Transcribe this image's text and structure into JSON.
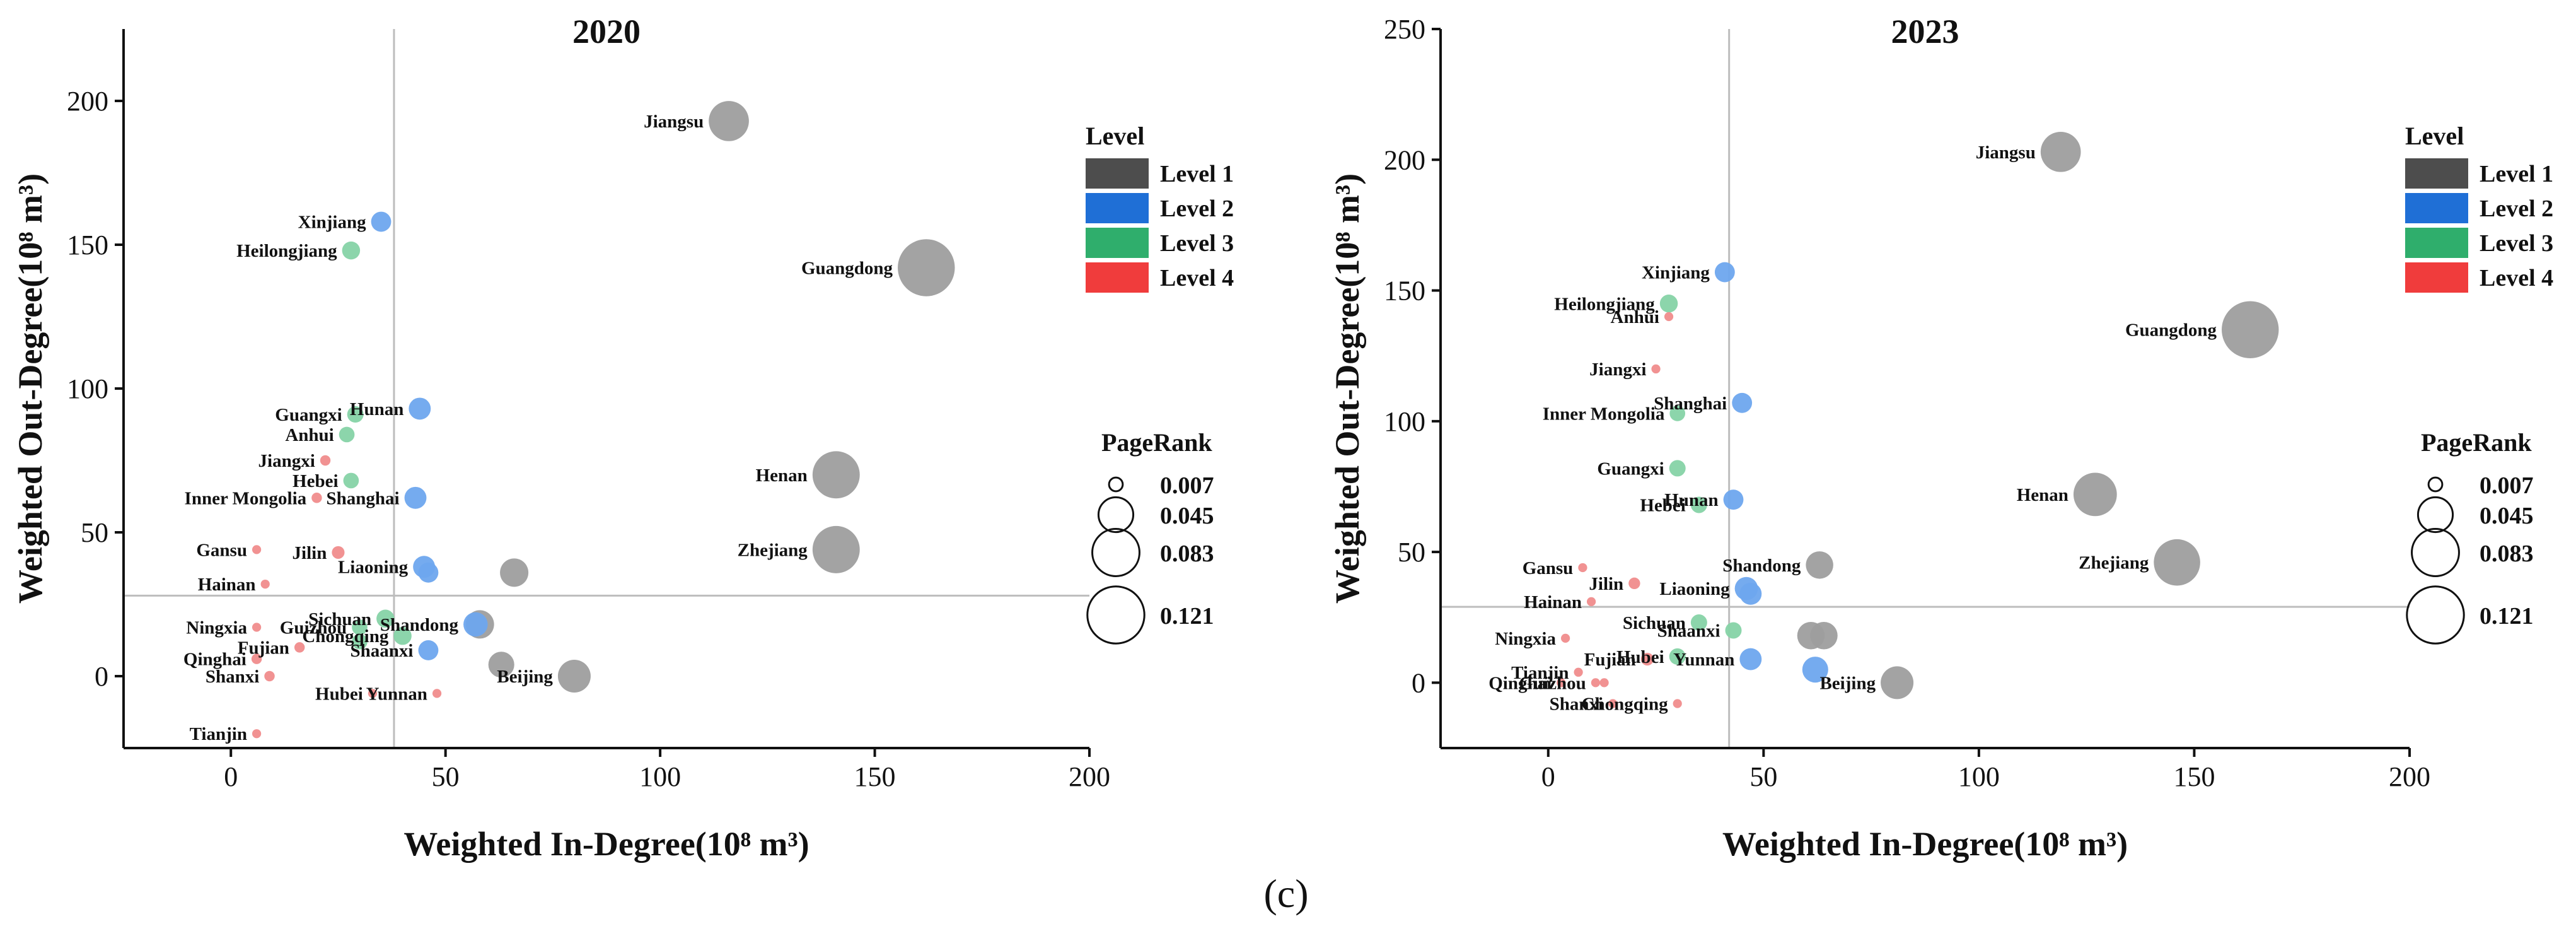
{
  "caption": "(c)",
  "legend": {
    "level_title": "Level",
    "levels": [
      {
        "name": "Level 1",
        "color": "#4d4d4d",
        "point_color": "#9e9e9e"
      },
      {
        "name": "Level 2",
        "color": "#1f6fd6",
        "point_color": "#6ea7ee"
      },
      {
        "name": "Level 3",
        "color": "#2fae6c",
        "point_color": "#86d3a7"
      },
      {
        "name": "Level 4",
        "color": "#f03c3c",
        "point_color": "#f08c8c"
      }
    ],
    "pagerank_title": "PageRank",
    "pagerank_values": [
      "0.007",
      "0.045",
      "0.083",
      "0.121"
    ]
  },
  "chart_data": [
    {
      "type": "scatter",
      "title": "2020",
      "xlabel": "Weighted In-Degree(10⁸ m³)",
      "ylabel": "Weighted Out-Degree(10⁸ m³)",
      "xlim": [
        -25,
        200
      ],
      "ylim": [
        -25,
        225
      ],
      "xticks": [
        "0",
        "50",
        "100",
        "150",
        "200"
      ],
      "yticks": [
        "0",
        "50",
        "100",
        "150",
        "200"
      ],
      "mean_in": 38,
      "mean_out": 28,
      "points": [
        {
          "name": "Jiangsu",
          "x": 116,
          "y": 193,
          "level": 1,
          "pagerank": 0.06
        },
        {
          "name": "Guangdong",
          "x": 162,
          "y": 142,
          "level": 1,
          "pagerank": 0.121
        },
        {
          "name": "Henan",
          "x": 141,
          "y": 70,
          "level": 1,
          "pagerank": 0.083
        },
        {
          "name": "Zhejiang",
          "x": 141,
          "y": 44,
          "level": 1,
          "pagerank": 0.083
        },
        {
          "name": "Beijing",
          "x": 80,
          "y": 0,
          "level": 1,
          "pagerank": 0.04
        },
        {
          "name": "",
          "x": 66,
          "y": 36,
          "level": 1,
          "pagerank": 0.03
        },
        {
          "name": "",
          "x": 63,
          "y": 4,
          "level": 1,
          "pagerank": 0.025
        },
        {
          "name": "",
          "x": 58,
          "y": 18,
          "level": 1,
          "pagerank": 0.03
        },
        {
          "name": "Xinjiang",
          "x": 35,
          "y": 158,
          "level": 2,
          "pagerank": 0.015
        },
        {
          "name": "Hunan",
          "x": 44,
          "y": 93,
          "level": 2,
          "pagerank": 0.018
        },
        {
          "name": "Shanghai",
          "x": 43,
          "y": 62,
          "level": 2,
          "pagerank": 0.018
        },
        {
          "name": "Liaoning",
          "x": 45,
          "y": 38,
          "level": 2,
          "pagerank": 0.018
        },
        {
          "name": "",
          "x": 46,
          "y": 36,
          "level": 2,
          "pagerank": 0.015
        },
        {
          "name": "Shandong",
          "x": 57,
          "y": 18,
          "level": 2,
          "pagerank": 0.022
        },
        {
          "name": "Shaanxi",
          "x": 46,
          "y": 9,
          "level": 2,
          "pagerank": 0.015
        },
        {
          "name": "Heilongjiang",
          "x": 28,
          "y": 148,
          "level": 3,
          "pagerank": 0.012
        },
        {
          "name": "Guangxi",
          "x": 29,
          "y": 91,
          "level": 3,
          "pagerank": 0.01
        },
        {
          "name": "Anhui",
          "x": 27,
          "y": 84,
          "level": 3,
          "pagerank": 0.009
        },
        {
          "name": "Hebei",
          "x": 28,
          "y": 68,
          "level": 3,
          "pagerank": 0.009
        },
        {
          "name": "Sichuan",
          "x": 36,
          "y": 20,
          "level": 3,
          "pagerank": 0.012
        },
        {
          "name": "Chongqing",
          "x": 40,
          "y": 14,
          "level": 3,
          "pagerank": 0.012
        },
        {
          "name": "Guizhou",
          "x": 30,
          "y": 17,
          "level": 3,
          "pagerank": 0.009
        },
        {
          "name": "",
          "x": 30,
          "y": 12,
          "level": 3,
          "pagerank": 0.009
        },
        {
          "name": "Jiangxi",
          "x": 22,
          "y": 75,
          "level": 4,
          "pagerank": 0.004
        },
        {
          "name": "Inner Mongolia",
          "x": 20,
          "y": 62,
          "level": 4,
          "pagerank": 0.004
        },
        {
          "name": "Jilin",
          "x": 25,
          "y": 43,
          "level": 4,
          "pagerank": 0.006
        },
        {
          "name": "Gansu",
          "x": 6,
          "y": 44,
          "level": 4,
          "pagerank": 0.003
        },
        {
          "name": "Hainan",
          "x": 8,
          "y": 32,
          "level": 4,
          "pagerank": 0.003
        },
        {
          "name": "Ningxia",
          "x": 6,
          "y": 17,
          "level": 4,
          "pagerank": 0.003
        },
        {
          "name": "Qinghai",
          "x": 6,
          "y": 6,
          "level": 4,
          "pagerank": 0.004
        },
        {
          "name": "Fujian",
          "x": 16,
          "y": 10,
          "level": 4,
          "pagerank": 0.004
        },
        {
          "name": "Shanxi",
          "x": 9,
          "y": 0,
          "level": 4,
          "pagerank": 0.004
        },
        {
          "name": "Hubei",
          "x": 33,
          "y": -6,
          "level": 4,
          "pagerank": 0.003
        },
        {
          "name": "Yunnan",
          "x": 48,
          "y": -6,
          "level": 4,
          "pagerank": 0.003
        },
        {
          "name": "Tianjin",
          "x": 6,
          "y": -20,
          "level": 4,
          "pagerank": 0.003
        }
      ]
    },
    {
      "type": "scatter",
      "title": "2023",
      "xlabel": "Weighted In-Degree(10⁸ m³)",
      "ylabel": "Weighted Out-Degree(10⁸ m³)",
      "xlim": [
        -25,
        200
      ],
      "ylim": [
        -25,
        250
      ],
      "xticks": [
        "0",
        "50",
        "100",
        "150",
        "200"
      ],
      "yticks": [
        "0",
        "50",
        "100",
        "150",
        "200",
        "250"
      ],
      "mean_in": 42,
      "mean_out": 29,
      "points": [
        {
          "name": "Jiangsu",
          "x": 119,
          "y": 203,
          "level": 1,
          "pagerank": 0.06
        },
        {
          "name": "Guangdong",
          "x": 163,
          "y": 135,
          "level": 1,
          "pagerank": 0.121
        },
        {
          "name": "Henan",
          "x": 127,
          "y": 72,
          "level": 1,
          "pagerank": 0.07
        },
        {
          "name": "Zhejiang",
          "x": 146,
          "y": 46,
          "level": 1,
          "pagerank": 0.08
        },
        {
          "name": "Beijing",
          "x": 81,
          "y": 0,
          "level": 1,
          "pagerank": 0.04
        },
        {
          "name": "Shandong",
          "x": 63,
          "y": 45,
          "level": 1,
          "pagerank": 0.028
        },
        {
          "name": "",
          "x": 61,
          "y": 18,
          "level": 1,
          "pagerank": 0.028
        },
        {
          "name": "",
          "x": 64,
          "y": 18,
          "level": 1,
          "pagerank": 0.028
        },
        {
          "name": "Xinjiang",
          "x": 41,
          "y": 157,
          "level": 2,
          "pagerank": 0.015
        },
        {
          "name": "Shanghai",
          "x": 45,
          "y": 107,
          "level": 2,
          "pagerank": 0.015
        },
        {
          "name": "Hunan",
          "x": 43,
          "y": 70,
          "level": 2,
          "pagerank": 0.015
        },
        {
          "name": "Liaoning",
          "x": 46,
          "y": 36,
          "level": 2,
          "pagerank": 0.02
        },
        {
          "name": "",
          "x": 47,
          "y": 34,
          "level": 2,
          "pagerank": 0.018
        },
        {
          "name": "Yunnan",
          "x": 47,
          "y": 9,
          "level": 2,
          "pagerank": 0.018
        },
        {
          "name": "",
          "x": 62,
          "y": 5,
          "level": 2,
          "pagerank": 0.025
        },
        {
          "name": "Heilongjiang",
          "x": 28,
          "y": 145,
          "level": 3,
          "pagerank": 0.012
        },
        {
          "name": "Inner Mongolia",
          "x": 30,
          "y": 103,
          "level": 3,
          "pagerank": 0.009
        },
        {
          "name": "Guangxi",
          "x": 30,
          "y": 82,
          "level": 3,
          "pagerank": 0.01
        },
        {
          "name": "Hebei",
          "x": 35,
          "y": 68,
          "level": 3,
          "pagerank": 0.01
        },
        {
          "name": "Sichuan",
          "x": 35,
          "y": 23,
          "level": 3,
          "pagerank": 0.01
        },
        {
          "name": "Shaanxi",
          "x": 43,
          "y": 20,
          "level": 3,
          "pagerank": 0.01
        },
        {
          "name": "Hubei",
          "x": 30,
          "y": 10,
          "level": 3,
          "pagerank": 0.01
        },
        {
          "name": "Anhui",
          "x": 28,
          "y": 140,
          "level": 4,
          "pagerank": 0.003
        },
        {
          "name": "Jiangxi",
          "x": 25,
          "y": 120,
          "level": 4,
          "pagerank": 0.003
        },
        {
          "name": "Gansu",
          "x": 8,
          "y": 44,
          "level": 4,
          "pagerank": 0.003
        },
        {
          "name": "Jilin",
          "x": 20,
          "y": 38,
          "level": 4,
          "pagerank": 0.005
        },
        {
          "name": "Hainan",
          "x": 10,
          "y": 31,
          "level": 4,
          "pagerank": 0.003
        },
        {
          "name": "Ningxia",
          "x": 4,
          "y": 17,
          "level": 4,
          "pagerank": 0.003
        },
        {
          "name": "Fujian",
          "x": 23,
          "y": 9,
          "level": 4,
          "pagerank": 0.006
        },
        {
          "name": "Tianjin",
          "x": 7,
          "y": 4,
          "level": 4,
          "pagerank": 0.003
        },
        {
          "name": "Guizhou",
          "x": 11,
          "y": 0,
          "level": 4,
          "pagerank": 0.003
        },
        {
          "name": "",
          "x": 13,
          "y": 0,
          "level": 4,
          "pagerank": 0.003
        },
        {
          "name": "Qinghai",
          "x": 3,
          "y": 0,
          "level": 4,
          "pagerank": 0.003
        },
        {
          "name": "Shanxi",
          "x": 15,
          "y": -8,
          "level": 4,
          "pagerank": 0.003
        },
        {
          "name": "Chongqing",
          "x": 30,
          "y": -8,
          "level": 4,
          "pagerank": 0.003
        }
      ]
    }
  ]
}
